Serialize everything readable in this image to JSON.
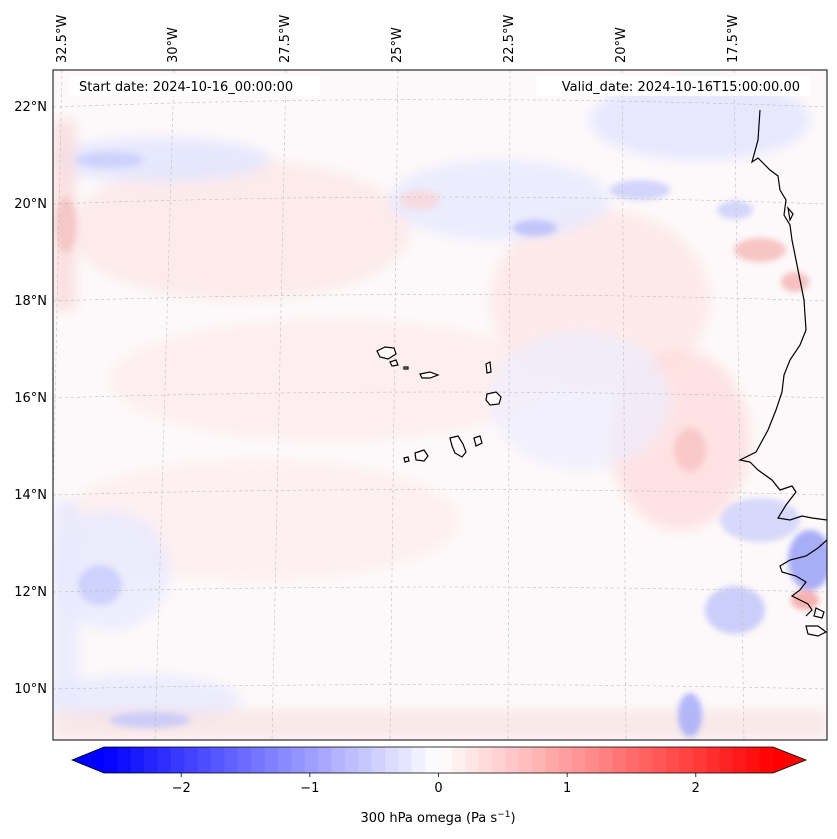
{
  "map": {
    "start_date_label": "Start date: 2024-10-16_00:00:00",
    "valid_date_label": "Valid_date: 2024-10-16T15:00:00.00",
    "lon_labels": [
      "32.5°W",
      "30°W",
      "27.5°W",
      "25°W",
      "22.5°W",
      "20°W",
      "17.5°W"
    ],
    "lat_labels": [
      "22°N",
      "20°N",
      "18°N",
      "16°N",
      "14°N",
      "12°N",
      "10°N"
    ],
    "field": "omega",
    "level": "300 hPa"
  },
  "colorbar": {
    "label": "300 hPa omega (Pa s",
    "label_sup": "−1",
    "label_close": ")",
    "ticks": [
      {
        "value": -2,
        "text": "−2"
      },
      {
        "value": -1,
        "text": "−1"
      },
      {
        "value": 0,
        "text": "0"
      },
      {
        "value": 1,
        "text": "1"
      },
      {
        "value": 2,
        "text": "2"
      }
    ],
    "range": [
      -2.6,
      2.6
    ],
    "colormap": "bwr",
    "color_low": "#0000ff",
    "color_mid": "#ffffff",
    "color_high": "#ff0000"
  },
  "colors": {
    "coastline": "#000000",
    "gridline": "#bbbbbb"
  }
}
